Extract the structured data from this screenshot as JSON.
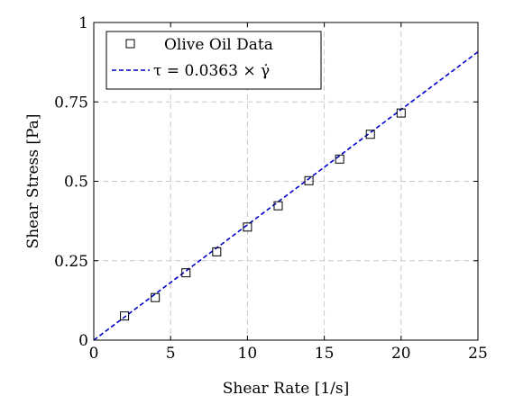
{
  "chart_data": {
    "type": "scatter",
    "xlabel": "Shear Rate [1/s]",
    "ylabel": "Shear Stress [Pa]",
    "xlim": [
      0,
      25
    ],
    "ylim": [
      0,
      1
    ],
    "x_ticks": [
      0,
      5,
      10,
      15,
      20,
      25
    ],
    "y_ticks": [
      0,
      0.25,
      0.5,
      0.75,
      1
    ],
    "x_tick_labels": [
      "0",
      "5",
      "10",
      "15",
      "20",
      "25"
    ],
    "y_tick_labels": [
      "0",
      "0.25",
      "0.5",
      "0.75",
      "1"
    ],
    "grid": true,
    "legend_position": "top-left",
    "series": [
      {
        "name": "Olive Oil Data",
        "marker": "square",
        "color": "#000000",
        "x": [
          2,
          4,
          6,
          8,
          10,
          12,
          14,
          16,
          18,
          20
        ],
        "y": [
          0.076,
          0.134,
          0.212,
          0.278,
          0.356,
          0.423,
          0.502,
          0.57,
          0.648,
          0.715
        ]
      },
      {
        "name": "τ = 0.0363 × γ̇",
        "style": "dashed-line",
        "color": "#0000cc",
        "slope": 0.0363,
        "x": [
          0,
          25
        ],
        "y": [
          0,
          0.9075
        ]
      }
    ]
  }
}
